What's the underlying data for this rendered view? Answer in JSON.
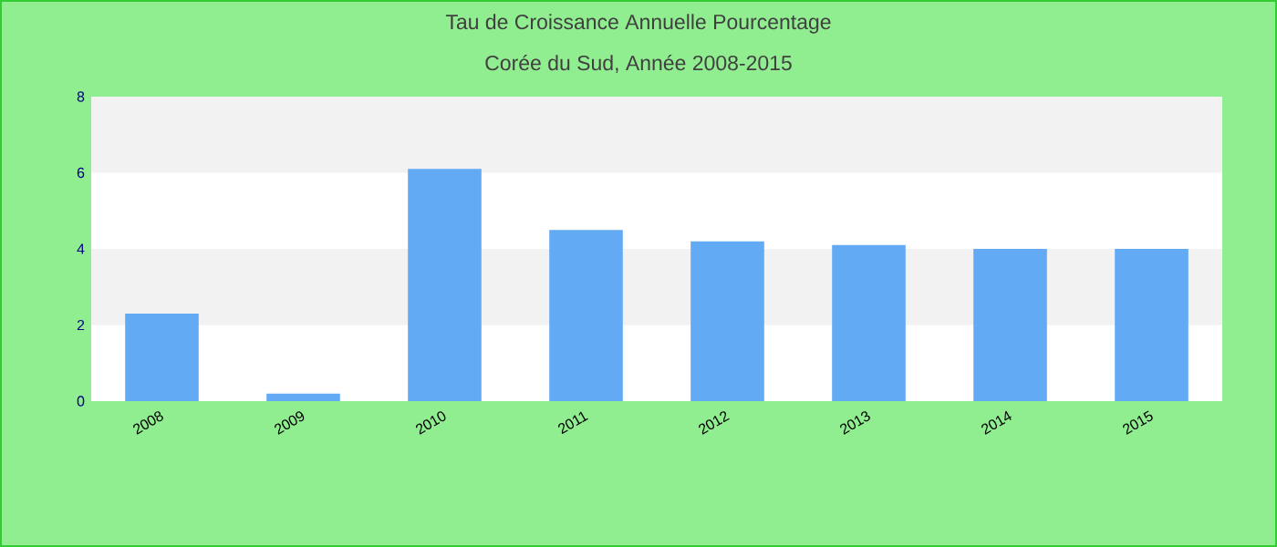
{
  "chart_data": {
    "type": "bar",
    "title": "Tau de Croissance Annuelle  Pourcentage",
    "subtitle": "Corée du Sud, Année 2008-2015",
    "categories": [
      "2008",
      "2009",
      "2010",
      "2011",
      "2012",
      "2013",
      "2014",
      "2015"
    ],
    "values": [
      2.3,
      0.2,
      6.1,
      4.5,
      4.2,
      4.1,
      4.0,
      4.0
    ],
    "color": "#63aaf5",
    "ylim": [
      0,
      8
    ],
    "yticks": [
      0,
      2,
      4,
      6,
      8
    ]
  }
}
